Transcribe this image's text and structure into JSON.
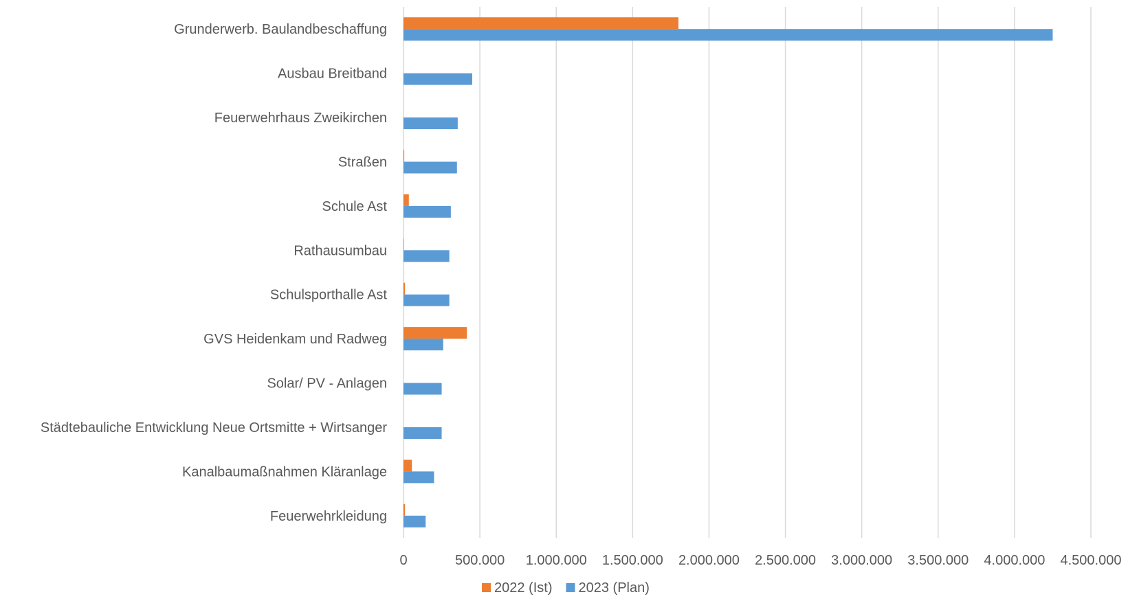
{
  "chart_data": {
    "type": "bar",
    "orientation": "horizontal",
    "title": "",
    "xlabel": "",
    "ylabel": "",
    "categories": [
      "Grunderwerb. Baulandbeschaffung",
      "Ausbau Breitband",
      "Feuerwehrhaus Zweikirchen",
      "Straßen",
      "Schule Ast",
      "Rathausumbau",
      "Schulsporthalle Ast",
      "GVS Heidenkam und Radweg",
      "Solar/ PV - Anlagen",
      "Städtebauliche Entwicklung Neue Ortsmitte + Wirtsanger",
      "Kanalbaumaßnahmen Kläranlage",
      "Feuerwehrkleidung"
    ],
    "series": [
      {
        "name": "2022 (Ist)",
        "color": "#ed7d31",
        "values": [
          1800000,
          0,
          0,
          5000,
          35000,
          3000,
          10000,
          415000,
          0,
          0,
          55000,
          10000
        ]
      },
      {
        "name": "2023 (Plan)",
        "color": "#5b9bd5",
        "values": [
          4250000,
          450000,
          355000,
          350000,
          310000,
          300000,
          300000,
          260000,
          250000,
          250000,
          200000,
          145000
        ]
      }
    ],
    "xlim": [
      0,
      4500000
    ],
    "ticks": [
      0,
      500000,
      1000000,
      1500000,
      2000000,
      2500000,
      3000000,
      3500000,
      4000000,
      4500000
    ],
    "tick_labels": [
      "0",
      "500.000",
      "1.000.000",
      "1.500.000",
      "2.000.000",
      "2.500.000",
      "3.000.000",
      "3.500.000",
      "4.000.000",
      "4.500.000"
    ],
    "grid": true,
    "legend_position": "bottom"
  }
}
